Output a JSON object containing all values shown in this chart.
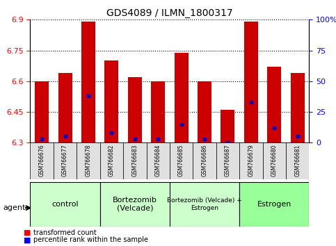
{
  "title": "GDS4089 / ILMN_1800317",
  "samples": [
    "GSM766676",
    "GSM766677",
    "GSM766678",
    "GSM766682",
    "GSM766683",
    "GSM766684",
    "GSM766685",
    "GSM766686",
    "GSM766687",
    "GSM766679",
    "GSM766680",
    "GSM766681"
  ],
  "transformed_count": [
    6.6,
    6.64,
    6.89,
    6.7,
    6.62,
    6.6,
    6.74,
    6.6,
    6.46,
    6.89,
    6.67,
    6.64
  ],
  "percentile_rank": [
    3,
    5,
    38,
    8,
    3,
    3,
    15,
    3,
    0,
    33,
    12,
    5
  ],
  "ymin": 6.3,
  "ymax": 6.9,
  "yticks": [
    6.3,
    6.45,
    6.6,
    6.75,
    6.9
  ],
  "ytick_labels": [
    "6.3",
    "6.45",
    "6.6",
    "6.75",
    "6.9"
  ],
  "right_yticks": [
    0,
    25,
    50,
    75,
    100
  ],
  "right_ytick_labels": [
    "0",
    "25",
    "50",
    "75",
    "100%"
  ],
  "bar_color": "#cc0000",
  "percentile_color": "#0000cc",
  "bar_width": 0.6,
  "groups": [
    {
      "label": "control",
      "start": 0,
      "end": 2,
      "color": "#ccffcc"
    },
    {
      "label": "Bortezomib\n(Velcade)",
      "start": 3,
      "end": 5,
      "color": "#ccffcc"
    },
    {
      "label": "Bortezomib (Velcade) +\nEstrogen",
      "start": 6,
      "end": 8,
      "color": "#ccffcc"
    },
    {
      "label": "Estrogen",
      "start": 9,
      "end": 11,
      "color": "#99ff99"
    }
  ],
  "legend_items": [
    {
      "label": "transformed count",
      "color": "#cc0000"
    },
    {
      "label": "percentile rank within the sample",
      "color": "#0000cc"
    }
  ],
  "grid_color": "black",
  "grid_linestyle": "dotted",
  "agent_label": "agent",
  "bg_color_tick_area": "#e0e0e0"
}
